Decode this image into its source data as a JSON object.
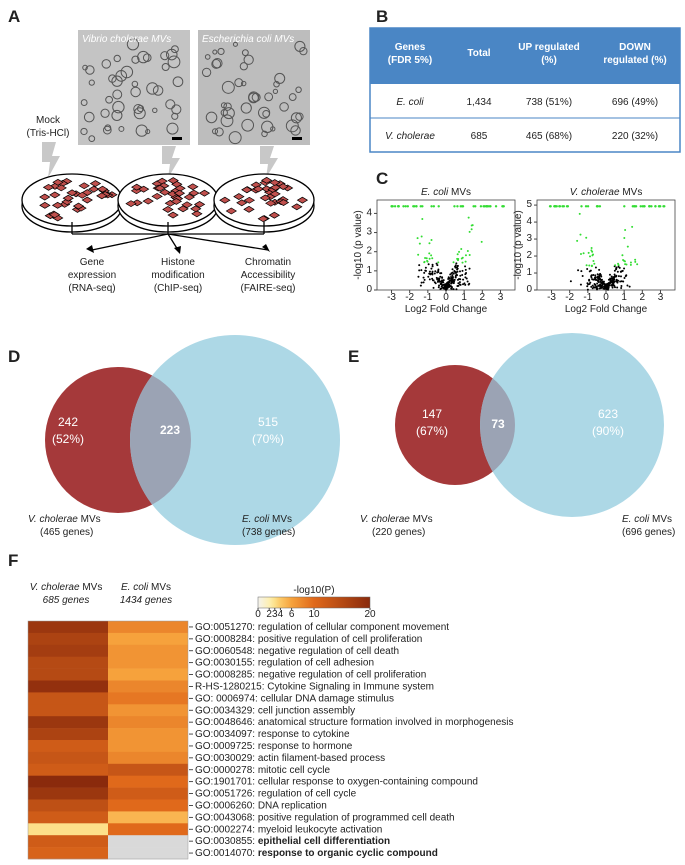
{
  "panel_a": {
    "label": "A",
    "micrographs": [
      "Vibrio cholerae MVs",
      "Escherichia coli MVs"
    ],
    "mock": [
      "Mock",
      "(Tris-HCl)"
    ],
    "outputs": [
      [
        "Gene",
        "expression",
        "(RNA-seq)"
      ],
      [
        "Histone",
        "modification",
        "(ChIP-seq)"
      ],
      [
        "Chromatin",
        "Accessibility",
        "(FAIRE-seq)"
      ]
    ]
  },
  "panel_b": {
    "label": "B",
    "header": [
      [
        "Genes",
        "(FDR 5%)"
      ],
      [
        "Total"
      ],
      [
        "UP regulated",
        "(%)"
      ],
      [
        "DOWN",
        "regulated (%)"
      ]
    ],
    "rows": [
      [
        "E. coli",
        "1,434",
        "738 (51%)",
        "696 (49%)"
      ],
      [
        "V. cholerae",
        "685",
        "465 (68%)",
        "220 (32%)"
      ]
    ]
  },
  "panel_c": {
    "label": "C",
    "plots": [
      {
        "title": {
          "species": "E. coli",
          "suffix": "MVs"
        },
        "y_label": "-log10 (p value)",
        "x_label": "Log2 Fold Change",
        "xlim": [
          -3.8,
          3.8
        ],
        "xticks": [
          -3,
          -2,
          -1,
          0,
          1,
          2,
          3
        ],
        "ylim": [
          0,
          4.7
        ],
        "yticks": [
          0,
          1,
          2,
          3,
          4
        ]
      },
      {
        "title": {
          "species": "V. cholerae",
          "suffix": "MVs"
        },
        "y_label": "-log10 (p value)",
        "x_label": "Log2 Fold Change",
        "xlim": [
          -3.8,
          3.8
        ],
        "xticks": [
          -3,
          -2,
          -1,
          0,
          1,
          2,
          3
        ],
        "ylim": [
          0,
          5.3
        ],
        "yticks": [
          0,
          1,
          2,
          3,
          4,
          5
        ]
      }
    ]
  },
  "panel_d": {
    "label": "D",
    "left": [
      "242",
      "(52%)"
    ],
    "overlap": "223",
    "right": [
      "515",
      "(70%)"
    ],
    "left_label": {
      "species": "V. cholerae",
      "suffix": "MVs",
      "genes": "(465 genes)"
    },
    "right_label": {
      "species": "E. coli",
      "suffix": "MVs",
      "genes": "(738 genes)"
    }
  },
  "panel_e": {
    "label": "E",
    "left": [
      "147",
      "(67%)"
    ],
    "overlap": "73",
    "right": [
      "623",
      "(90%)"
    ],
    "left_label": {
      "species": "V. cholerae",
      "suffix": "MVs",
      "genes": "(220 genes)"
    },
    "right_label": {
      "species": "E. coli",
      "suffix": "MVs",
      "genes": "(696 genes)"
    }
  },
  "panel_f": {
    "label": "F",
    "columns": [
      {
        "species": "V. cholerae",
        "suffix": "MVs",
        "genes": "685 genes"
      },
      {
        "species": "E. coli",
        "suffix": "MVs",
        "genes": "1434 genes"
      }
    ],
    "colorbar": {
      "title": "-log10(P)",
      "lim": [
        0,
        20
      ],
      "ticks": [
        0,
        2,
        3,
        4,
        6,
        10,
        20
      ],
      "colors": [
        "#f4f3ee",
        "#fdefb2",
        "#fde08a",
        "#fcc866",
        "#f6a23c",
        "#e0691b",
        "#8a2a0c"
      ]
    },
    "missing_color": "#d9d9d9",
    "rows": [
      {
        "id": "GO:0051270:",
        "term": "regulation  of cellular component movement",
        "values": [
          18,
          8
        ]
      },
      {
        "id": "GO:0008284:",
        "term": "positive regulation of cell proliferation",
        "values": [
          16,
          6
        ]
      },
      {
        "id": "GO:0060548:",
        "term": "negative regulation of cell death",
        "values": [
          17,
          7
        ]
      },
      {
        "id": "GO:0030155:",
        "term": "regulation of cell adhesion",
        "values": [
          15,
          7
        ]
      },
      {
        "id": "GO:0008285:",
        "term": "negative regulation of cell proliferation",
        "values": [
          15,
          6
        ]
      },
      {
        "id": "R-HS-1280215:",
        "term": "Cytokine Signaling in Immune system",
        "values": [
          19,
          8
        ]
      },
      {
        "id": "GO: 0006974:",
        "term": "cellular DNA damage stimulus",
        "values": [
          13,
          9
        ]
      },
      {
        "id": "GO:0034329:",
        "term": "cell junction assembly",
        "values": [
          13,
          7
        ]
      },
      {
        "id": "GO:0048646:",
        "term": "anatomical structure formation involved in morphogenesis",
        "values": [
          18,
          8
        ]
      },
      {
        "id": "GO:0034097:",
        "term": "response to cytokine",
        "values": [
          16,
          7
        ]
      },
      {
        "id": "GO:0009725:",
        "term": "response to hormone",
        "values": [
          12,
          7
        ]
      },
      {
        "id": "GO:0030029:",
        "term": "actin filament-based process",
        "values": [
          13,
          8
        ]
      },
      {
        "id": "GO:0000278:",
        "term": "mitotic cell cycle",
        "values": [
          12,
          13
        ]
      },
      {
        "id": "GO:1901701:",
        "term": "cellular response to oxygen-containing compound",
        "values": [
          20,
          10
        ]
      },
      {
        "id": "GO:0051726:",
        "term": "regulation of cell cycle",
        "values": [
          18,
          12
        ]
      },
      {
        "id": "GO:0006260:",
        "term": "DNA replication",
        "values": [
          14,
          10
        ]
      },
      {
        "id": "GO:0043068:",
        "term": "positive regulation of programmed cell death",
        "values": [
          12,
          5
        ]
      },
      {
        "id": "GO:0002274:",
        "term": "myeloid leukocyte activation",
        "values": [
          3,
          10
        ]
      },
      {
        "id": "GO:0030855:",
        "term": "epithelial cell differentiation",
        "values": [
          12,
          null
        ],
        "emphasis": true
      },
      {
        "id": "GO:0014070:",
        "term": "response to organic cyclic compound",
        "values": [
          11,
          null
        ],
        "emphasis": true
      }
    ]
  }
}
